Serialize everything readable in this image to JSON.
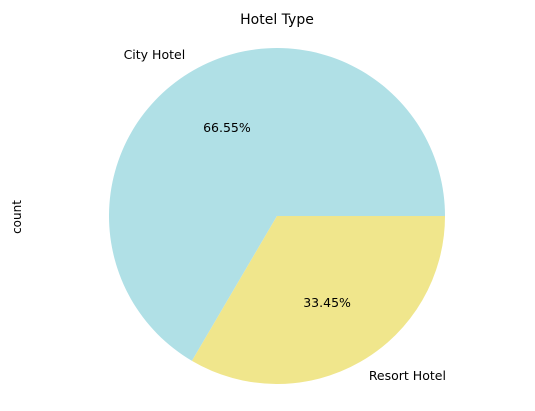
{
  "chart_data": {
    "type": "pie",
    "title": "Hotel Type",
    "ylabel": "count",
    "legend": "none",
    "slices": [
      {
        "label": "City Hotel",
        "value": 66.55,
        "pct_label": "66.55%",
        "color": "#b0e0e6"
      },
      {
        "label": "Resort Hotel",
        "value": 33.45,
        "pct_label": "33.45%",
        "color": "#f0e68c"
      }
    ]
  }
}
